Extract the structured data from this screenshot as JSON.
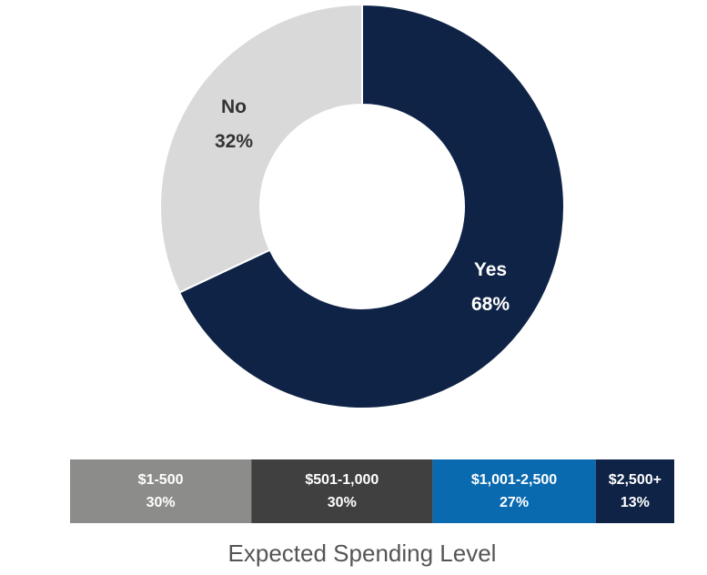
{
  "chart_data": [
    {
      "type": "donut",
      "categories": [
        "Yes",
        "No"
      ],
      "values": [
        68,
        32
      ],
      "value_labels": [
        "68%",
        "32%"
      ],
      "colors": [
        "#0f2346",
        "#d9d9d9"
      ],
      "label_colors": [
        "#ffffff",
        "#333333"
      ]
    },
    {
      "type": "stacked_bar",
      "title": "Expected Spending Level",
      "series": [
        {
          "name": "$1-500",
          "color": "#8c8c8a",
          "values": [
            30
          ],
          "value_labels": [
            "30%"
          ]
        },
        {
          "name": "$501-1,000",
          "color": "#404040",
          "values": [
            30
          ],
          "value_labels": [
            "30%"
          ]
        },
        {
          "name": "$1,001-2,500",
          "color": "#0a6ab0",
          "values": [
            27
          ],
          "value_labels": [
            "27%"
          ]
        },
        {
          "name": "$2,500+",
          "color": "#0f2346",
          "values": [
            13
          ],
          "value_labels": [
            "13%"
          ]
        }
      ]
    }
  ]
}
